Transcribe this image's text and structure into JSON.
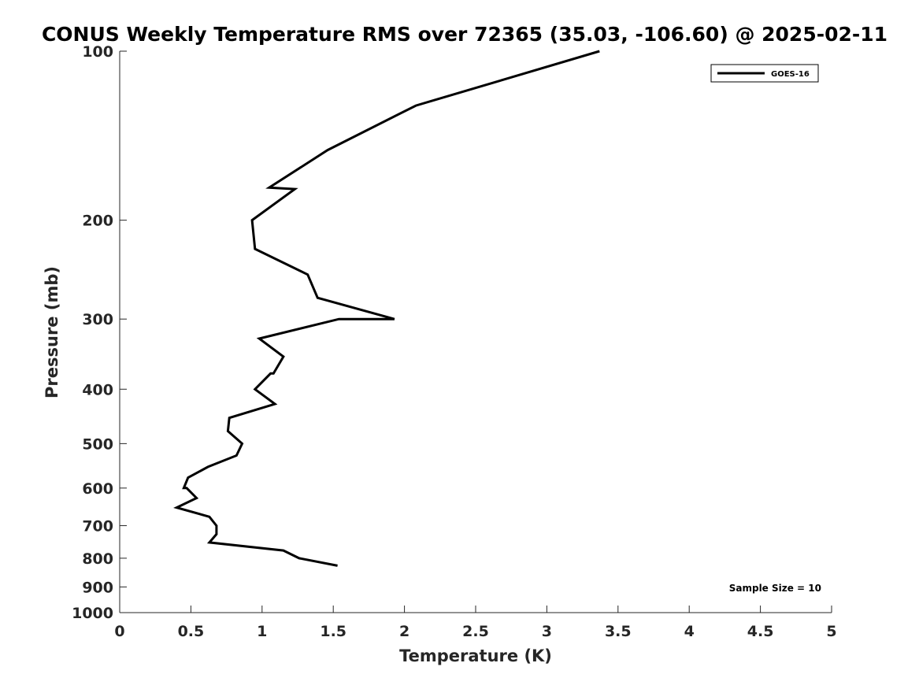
{
  "chart_data": {
    "type": "line",
    "title": "CONUS Weekly Temperature RMS over 72365 (35.03, -106.60) @ 2025-02-11",
    "xlabel": "Temperature (K)",
    "ylabel": "Pressure (mb)",
    "xlim": [
      0,
      5
    ],
    "ylim": [
      1000,
      100
    ],
    "yscale": "log",
    "y_inverted": true,
    "grid": false,
    "legend_position": "top-right",
    "x_ticks": [
      "0",
      "0.5",
      "1",
      "1.5",
      "2",
      "2.5",
      "3",
      "3.5",
      "4",
      "4.5",
      "5"
    ],
    "y_ticks": [
      "100",
      "200",
      "300",
      "400",
      "500",
      "600",
      "700",
      "800",
      "900",
      "1000"
    ],
    "series": [
      {
        "name": "GOES-16",
        "color": "#000000",
        "points": [
          {
            "x": 3.37,
            "y": 100
          },
          {
            "x": 2.08,
            "y": 125
          },
          {
            "x": 1.46,
            "y": 150
          },
          {
            "x": 1.05,
            "y": 175
          },
          {
            "x": 1.23,
            "y": 176
          },
          {
            "x": 0.93,
            "y": 200
          },
          {
            "x": 0.95,
            "y": 225
          },
          {
            "x": 1.32,
            "y": 250
          },
          {
            "x": 1.39,
            "y": 275
          },
          {
            "x": 1.93,
            "y": 300
          },
          {
            "x": 1.54,
            "y": 300
          },
          {
            "x": 0.98,
            "y": 325
          },
          {
            "x": 1.15,
            "y": 350
          },
          {
            "x": 1.08,
            "y": 375
          },
          {
            "x": 1.06,
            "y": 375
          },
          {
            "x": 0.95,
            "y": 400
          },
          {
            "x": 1.09,
            "y": 425
          },
          {
            "x": 0.77,
            "y": 450
          },
          {
            "x": 0.76,
            "y": 475
          },
          {
            "x": 0.86,
            "y": 500
          },
          {
            "x": 0.82,
            "y": 525
          },
          {
            "x": 0.62,
            "y": 550
          },
          {
            "x": 0.48,
            "y": 575
          },
          {
            "x": 0.45,
            "y": 600
          },
          {
            "x": 0.47,
            "y": 600
          },
          {
            "x": 0.54,
            "y": 625
          },
          {
            "x": 0.4,
            "y": 650
          },
          {
            "x": 0.63,
            "y": 675
          },
          {
            "x": 0.68,
            "y": 700
          },
          {
            "x": 0.68,
            "y": 725
          },
          {
            "x": 0.63,
            "y": 750
          },
          {
            "x": 1.15,
            "y": 775
          },
          {
            "x": 1.26,
            "y": 800
          },
          {
            "x": 1.53,
            "y": 825
          }
        ]
      }
    ],
    "annotations": [
      "Sample Size = 10"
    ]
  }
}
